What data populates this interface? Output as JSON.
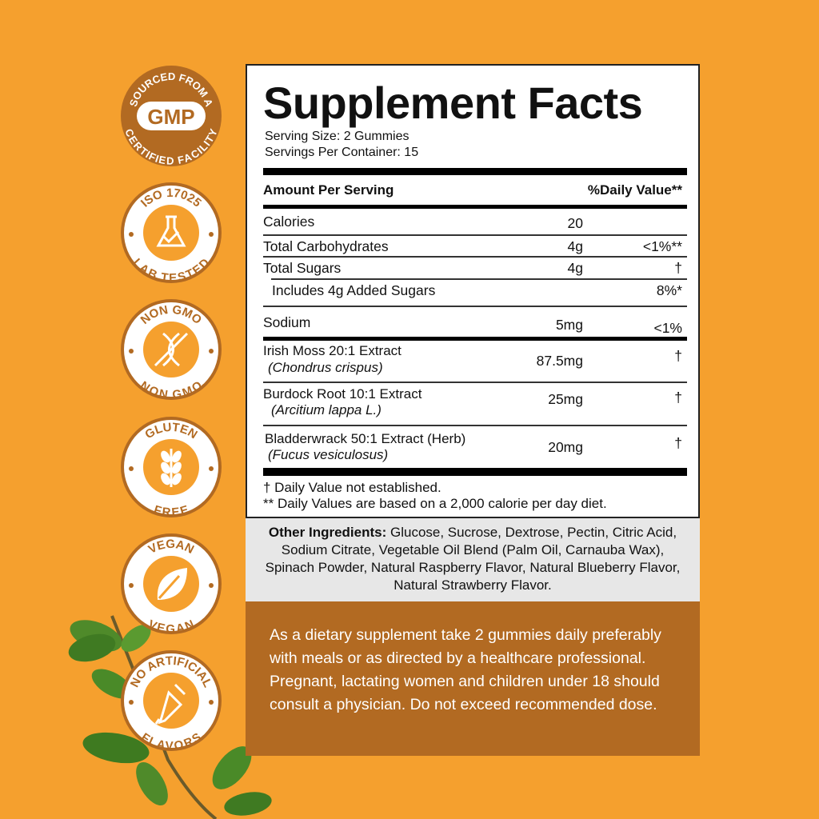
{
  "colors": {
    "background": "#f5a02e",
    "badge_brown": "#b26a22",
    "directions_bg": "#b26a22",
    "ingredients_bg": "#e7e7e7"
  },
  "badges": [
    {
      "top": "SOURCED FROM A",
      "center": "GMP",
      "bottom": "CERTIFIED FACILITY",
      "icon": "gmp-icon"
    },
    {
      "top": "ISO 17025",
      "bottom": "LAB TESTED",
      "icon": "flask-check-icon"
    },
    {
      "top": "NON GMO",
      "bottom": "NON GMO",
      "icon": "dna-crossed-icon"
    },
    {
      "top": "GLUTEN",
      "bottom": "FREE",
      "icon": "wheat-icon"
    },
    {
      "top": "VEGAN",
      "bottom": "VEGAN",
      "icon": "leaf-icon"
    },
    {
      "top": "NO ARTIFICIAL",
      "bottom": "FLAVORS",
      "icon": "dropper-icon"
    }
  ],
  "facts": {
    "title": "Supplement Facts",
    "serving_size": "Serving Size: 2 Gummies",
    "servings_per_container": "Servings Per Container: 15",
    "header_amount": "Amount Per Serving",
    "header_dv": "%Daily Value**",
    "rows": [
      {
        "name": "Calories",
        "amount": "20",
        "dv": ""
      },
      {
        "name": "Total Carbohydrates",
        "amount": "4g",
        "dv": "<1%**"
      },
      {
        "name": "Total  Sugars",
        "amount": "4g",
        "dv": "†"
      },
      {
        "name": "Includes 4g Added Sugars",
        "amount": "",
        "dv": "8%*"
      },
      {
        "name": "Sodium",
        "amount": "5mg",
        "dv": "<1%"
      },
      {
        "name": "Irish Moss 20:1 Extract",
        "latin": "(Chondrus crispus)",
        "amount": "87.5mg",
        "dv": "†"
      },
      {
        "name": "Burdock Root 10:1 Extract",
        "latin": "(Arcitium lappa L.)",
        "amount": "25mg",
        "dv": "†"
      },
      {
        "name": "Bladderwrack 50:1 Extract (Herb)",
        "latin": "(Fucus vesiculosus)",
        "amount": "20mg",
        "dv": "†"
      }
    ],
    "footnote1": "† Daily Value not established.",
    "footnote2": "** Daily Values are based on a 2,000 calorie per day diet."
  },
  "other_ingredients": {
    "label": "Other Ingredients:",
    "text": " Glucose, Sucrose, Dextrose, Pectin, Citric Acid, Sodium Citrate, Vegetable Oil Blend (Palm Oil, Carnauba Wax), Spinach Powder, Natural Raspberry Flavor, Natural Blueberry Flavor, Natural Strawberry Flavor."
  },
  "directions": "As a dietary supplement take 2 gummies daily preferably with meals or as directed by a healthcare professional. Pregnant, lactating women and children under 18 should consult a physician. Do not exceed recommended dose."
}
